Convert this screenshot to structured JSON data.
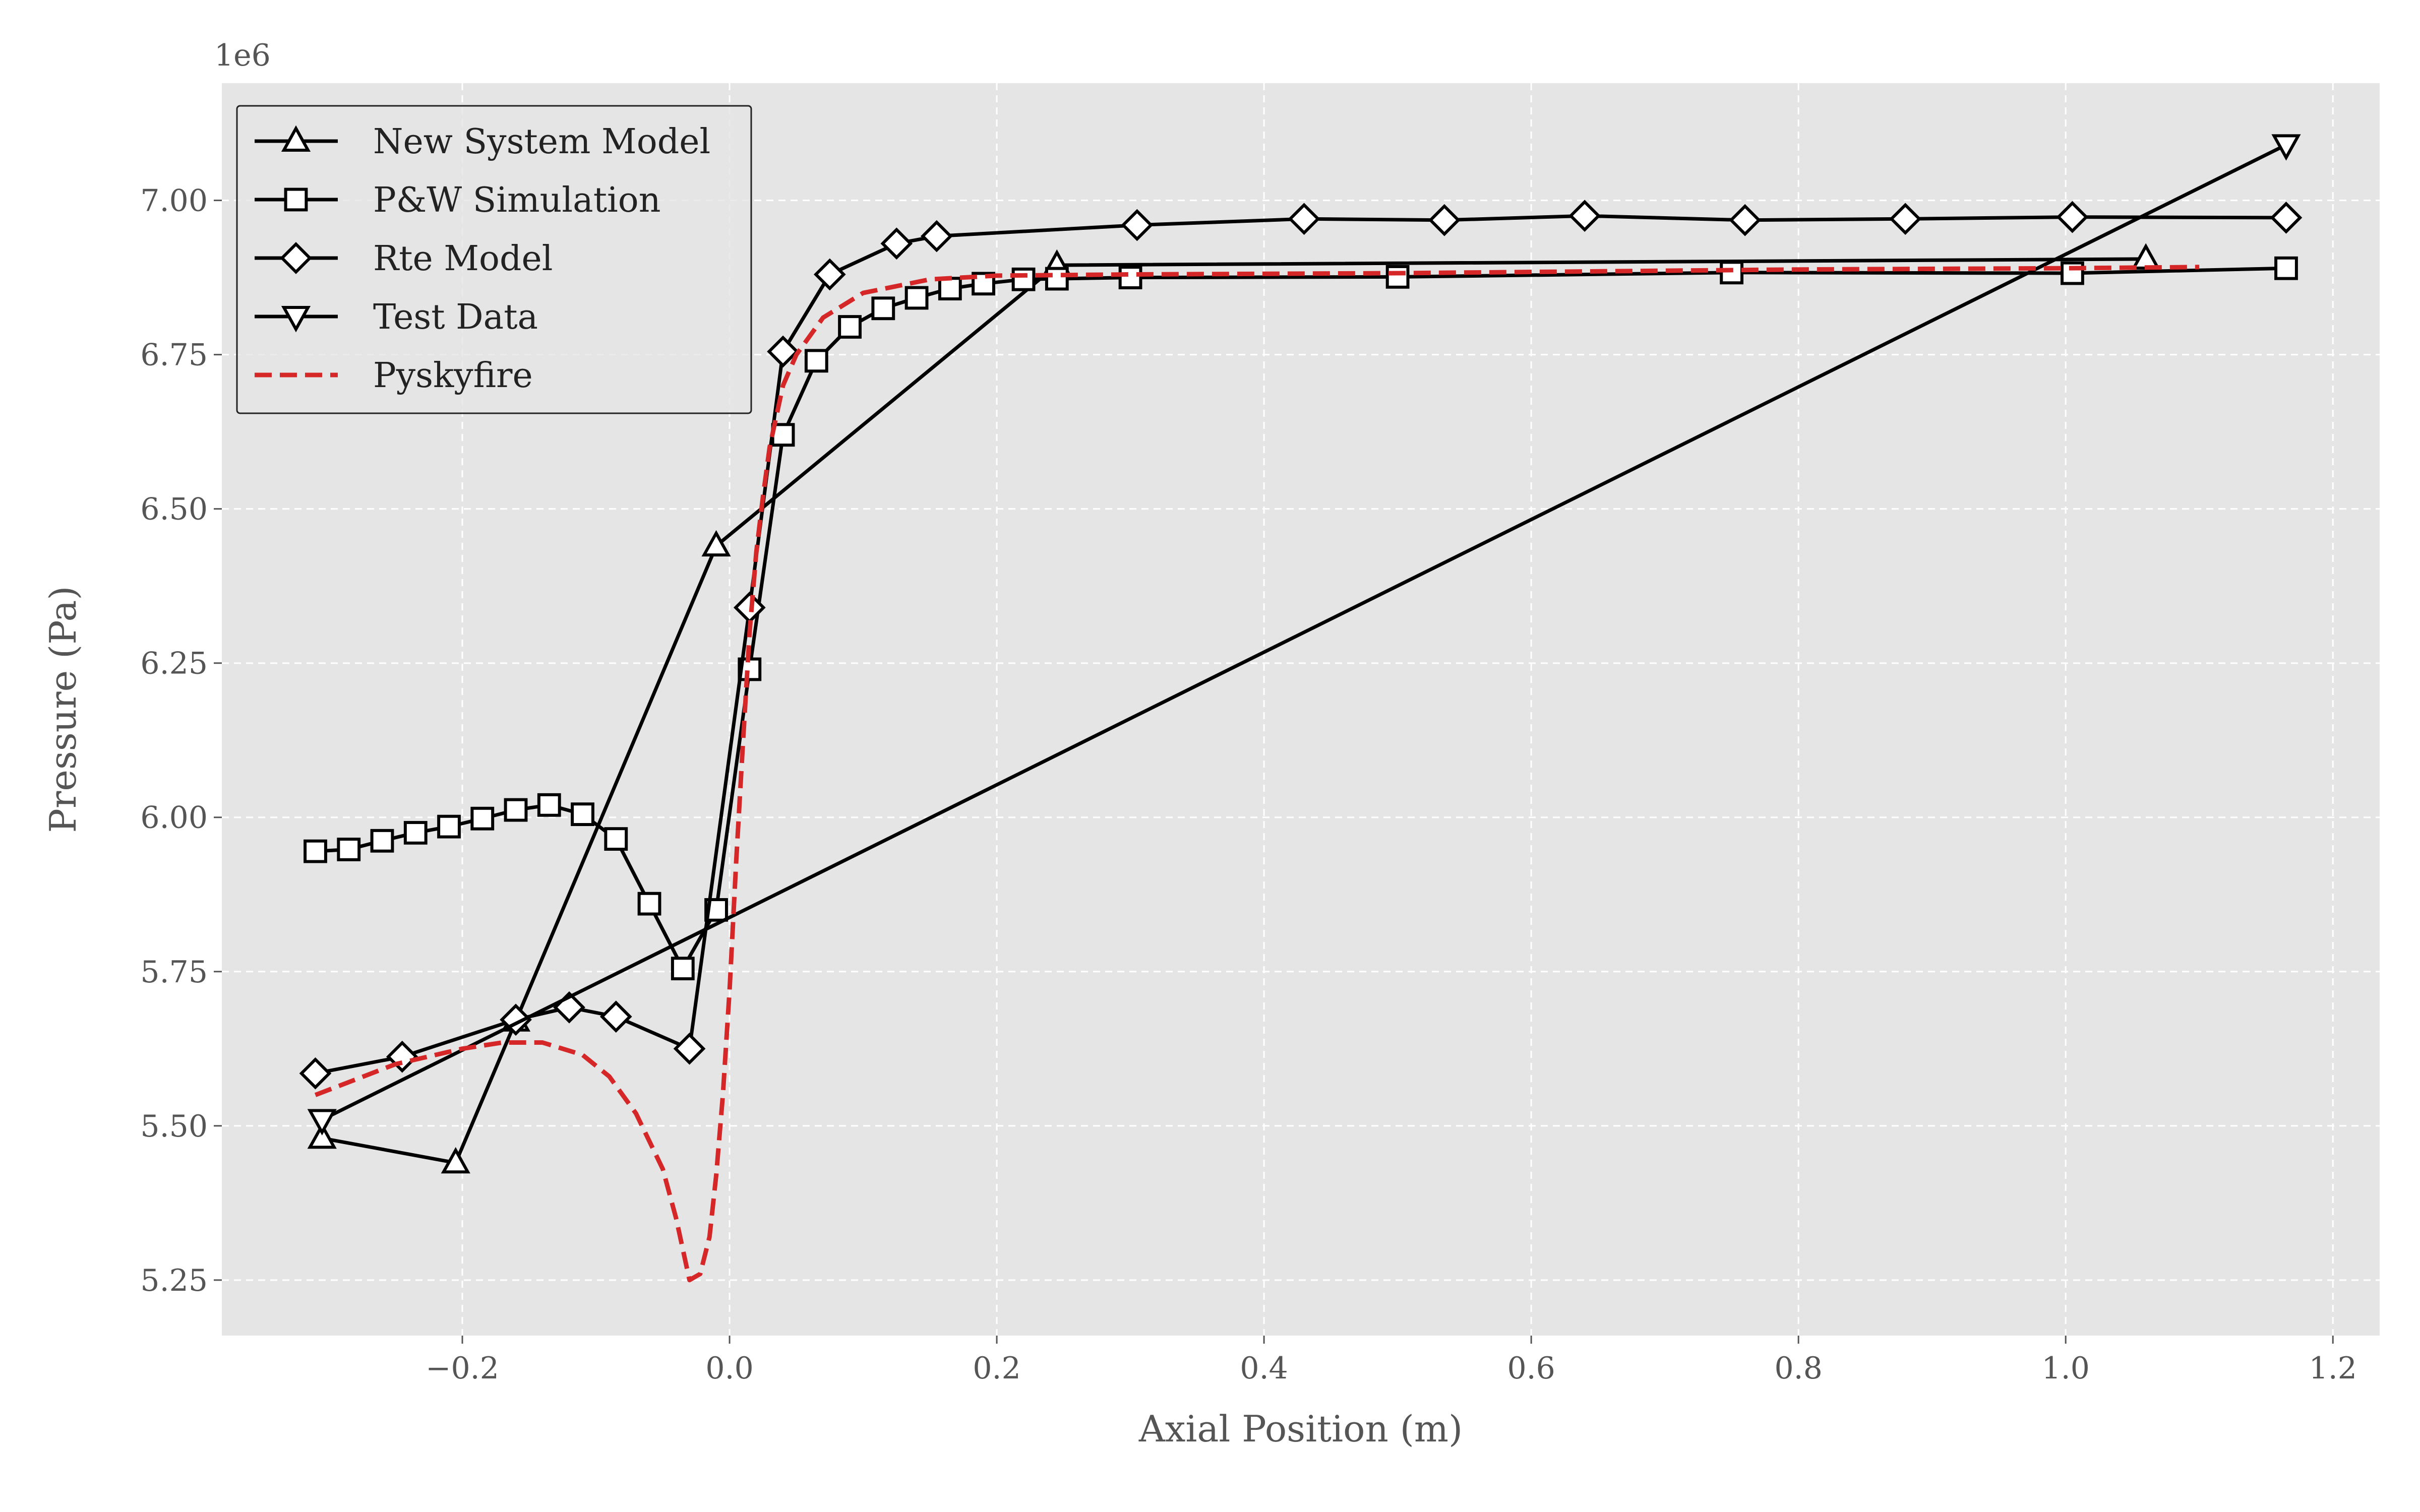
{
  "chart_data": {
    "type": "line",
    "title": "",
    "xlabel": "Axial Position (m)",
    "ylabel": "Pressure (Pa)",
    "y_offset_label": "1e6",
    "xlim": [
      -0.38,
      1.235
    ],
    "ylim": [
      5.16,
      7.19
    ],
    "xticks": [
      -0.2,
      0.0,
      0.2,
      0.4,
      0.6,
      0.8,
      1.0,
      1.2
    ],
    "xtick_labels": [
      "−0.2",
      "0.0",
      "0.2",
      "0.4",
      "0.6",
      "0.8",
      "1.0",
      "1.2"
    ],
    "yticks": [
      5.25,
      5.5,
      5.75,
      6.0,
      6.25,
      6.5,
      6.75,
      7.0
    ],
    "ytick_labels": [
      "5.25",
      "5.50",
      "5.75",
      "6.00",
      "6.25",
      "6.50",
      "6.75",
      "7.00"
    ],
    "grid": true,
    "legend_position": "top-left",
    "background_color": "#e5e5e5",
    "series": [
      {
        "name": "New System Model",
        "marker": "triangle-up",
        "color": "#000000",
        "x": [
          -0.305,
          -0.205,
          -0.16,
          -0.01,
          0.245,
          1.06
        ],
        "y": [
          5.48,
          5.44,
          5.67,
          6.44,
          6.895,
          6.905
        ]
      },
      {
        "name": "P&W Simulation",
        "marker": "square",
        "color": "#000000",
        "x": [
          -0.31,
          -0.285,
          -0.26,
          -0.235,
          -0.21,
          -0.185,
          -0.16,
          -0.135,
          -0.11,
          -0.085,
          -0.06,
          -0.035,
          -0.01,
          0.015,
          0.04,
          0.065,
          0.09,
          0.115,
          0.14,
          0.165,
          0.19,
          0.22,
          0.245,
          0.3,
          0.5,
          0.75,
          1.005,
          1.165
        ],
        "y": [
          5.945,
          5.948,
          5.962,
          5.975,
          5.985,
          5.998,
          6.012,
          6.02,
          6.005,
          5.965,
          5.86,
          5.755,
          5.85,
          6.24,
          6.62,
          6.74,
          6.795,
          6.825,
          6.842,
          6.857,
          6.865,
          6.872,
          6.873,
          6.875,
          6.876,
          6.883,
          6.882,
          6.89
        ]
      },
      {
        "name": "Rte Model",
        "marker": "diamond",
        "color": "#000000",
        "x": [
          -0.31,
          -0.245,
          -0.16,
          -0.12,
          -0.085,
          -0.03,
          0.015,
          0.04,
          0.075,
          0.125,
          0.155,
          0.305,
          0.43,
          0.535,
          0.64,
          0.76,
          0.88,
          1.005,
          1.165
        ],
        "y": [
          5.585,
          5.612,
          5.672,
          5.692,
          5.677,
          5.625,
          6.34,
          6.755,
          6.88,
          6.93,
          6.942,
          6.96,
          6.97,
          6.968,
          6.975,
          6.968,
          6.97,
          6.973,
          6.972
        ]
      },
      {
        "name": "Test Data",
        "marker": "triangle-down",
        "color": "#000000",
        "x": [
          -0.305,
          1.165
        ],
        "y": [
          5.51,
          7.09
        ]
      },
      {
        "name": "Pyskyfire",
        "marker": "none",
        "line_style": "dashed",
        "color": "#d62728",
        "x": [
          -0.31,
          -0.25,
          -0.2,
          -0.17,
          -0.14,
          -0.11,
          -0.09,
          -0.07,
          -0.05,
          -0.04,
          -0.03,
          -0.022,
          -0.015,
          -0.01,
          -0.005,
          0.0,
          0.005,
          0.01,
          0.015,
          0.02,
          0.025,
          0.03,
          0.04,
          0.05,
          0.07,
          0.1,
          0.15,
          0.2,
          0.3,
          0.5,
          0.8,
          1.0,
          1.1
        ],
        "y": [
          5.55,
          5.6,
          5.625,
          5.635,
          5.635,
          5.615,
          5.58,
          5.52,
          5.43,
          5.35,
          5.25,
          5.26,
          5.32,
          5.42,
          5.55,
          5.72,
          5.93,
          6.12,
          6.3,
          6.43,
          6.52,
          6.6,
          6.7,
          6.75,
          6.81,
          6.85,
          6.872,
          6.878,
          6.88,
          6.882,
          6.888,
          6.89,
          6.892
        ]
      }
    ]
  }
}
